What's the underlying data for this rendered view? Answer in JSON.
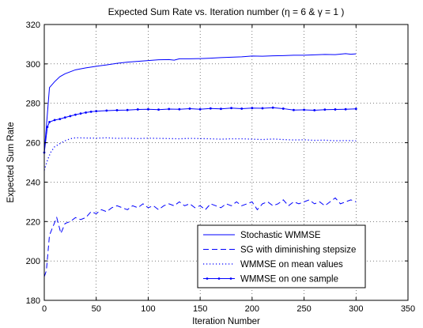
{
  "chart_data": {
    "type": "line",
    "title": "Expected Sum Rate vs. Iteration number (η = 6 & γ = 1 )",
    "xlabel": "Iteration Number",
    "ylabel": "Expected Sum Rate",
    "xlim": [
      0,
      350
    ],
    "ylim": [
      180,
      320
    ],
    "xticks": [
      0,
      50,
      100,
      150,
      200,
      250,
      300,
      350
    ],
    "yticks": [
      180,
      200,
      220,
      240,
      260,
      280,
      300,
      320
    ],
    "grid": "dotted",
    "legend_position": "bottom-right",
    "line_color": "#0000ff",
    "series": [
      {
        "name": "Stochastic WMMSE",
        "style": "solid",
        "points": [
          [
            0,
            255
          ],
          [
            5,
            288
          ],
          [
            10,
            291
          ],
          [
            15,
            293.5
          ],
          [
            20,
            295
          ],
          [
            25,
            296
          ],
          [
            30,
            297
          ],
          [
            40,
            298
          ],
          [
            50,
            298.8
          ],
          [
            60,
            299.5
          ],
          [
            70,
            300.3
          ],
          [
            80,
            300.9
          ],
          [
            90,
            301.3
          ],
          [
            100,
            301.7
          ],
          [
            110,
            302.1
          ],
          [
            120,
            302.2
          ],
          [
            125,
            301.9
          ],
          [
            130,
            302.6
          ],
          [
            140,
            302.6
          ],
          [
            150,
            302.7
          ],
          [
            160,
            302.9
          ],
          [
            170,
            303.2
          ],
          [
            180,
            303.4
          ],
          [
            190,
            303.6
          ],
          [
            200,
            304.0
          ],
          [
            210,
            303.9
          ],
          [
            220,
            304.1
          ],
          [
            230,
            304.2
          ],
          [
            240,
            304.4
          ],
          [
            250,
            304.4
          ],
          [
            260,
            304.6
          ],
          [
            270,
            304.8
          ],
          [
            280,
            304.7
          ],
          [
            290,
            305.2
          ],
          [
            295,
            304.9
          ],
          [
            300,
            305.1
          ]
        ]
      },
      {
        "name": "SG with diminishing stepsize",
        "style": "dashed",
        "points": [
          [
            0,
            192
          ],
          [
            2,
            195
          ],
          [
            5,
            213
          ],
          [
            8,
            217
          ],
          [
            12,
            222
          ],
          [
            16,
            214
          ],
          [
            20,
            219
          ],
          [
            25,
            220
          ],
          [
            30,
            222
          ],
          [
            35,
            221
          ],
          [
            40,
            222
          ],
          [
            45,
            225
          ],
          [
            50,
            224
          ],
          [
            55,
            226
          ],
          [
            60,
            225
          ],
          [
            65,
            227
          ],
          [
            70,
            228
          ],
          [
            75,
            227
          ],
          [
            80,
            226
          ],
          [
            85,
            228
          ],
          [
            90,
            227
          ],
          [
            95,
            229
          ],
          [
            100,
            227
          ],
          [
            105,
            228
          ],
          [
            110,
            226
          ],
          [
            115,
            228
          ],
          [
            120,
            229
          ],
          [
            125,
            228
          ],
          [
            130,
            230
          ],
          [
            135,
            228
          ],
          [
            140,
            229
          ],
          [
            145,
            227
          ],
          [
            150,
            228
          ],
          [
            155,
            226
          ],
          [
            160,
            229
          ],
          [
            165,
            228
          ],
          [
            170,
            227
          ],
          [
            175,
            229
          ],
          [
            180,
            228
          ],
          [
            185,
            230
          ],
          [
            190,
            228
          ],
          [
            195,
            229
          ],
          [
            200,
            230
          ],
          [
            205,
            226
          ],
          [
            210,
            229
          ],
          [
            215,
            230
          ],
          [
            220,
            228
          ],
          [
            225,
            229
          ],
          [
            230,
            231
          ],
          [
            235,
            228
          ],
          [
            240,
            230
          ],
          [
            245,
            229
          ],
          [
            250,
            230
          ],
          [
            255,
            231
          ],
          [
            260,
            229
          ],
          [
            265,
            230
          ],
          [
            270,
            228
          ],
          [
            275,
            230
          ],
          [
            280,
            232
          ],
          [
            285,
            229
          ],
          [
            290,
            230
          ],
          [
            295,
            231
          ],
          [
            300,
            230
          ]
        ]
      },
      {
        "name": "WMMSE on mean values",
        "style": "dotted",
        "points": [
          [
            0,
            246
          ],
          [
            3,
            251
          ],
          [
            6,
            255
          ],
          [
            10,
            258
          ],
          [
            15,
            259.5
          ],
          [
            20,
            261
          ],
          [
            25,
            262
          ],
          [
            30,
            262.5
          ],
          [
            40,
            262.4
          ],
          [
            50,
            262.3
          ],
          [
            60,
            262.5
          ],
          [
            70,
            262.2
          ],
          [
            80,
            262.3
          ],
          [
            90,
            262.1
          ],
          [
            100,
            262.3
          ],
          [
            110,
            262.2
          ],
          [
            120,
            262.1
          ],
          [
            130,
            262.0
          ],
          [
            140,
            262.2
          ],
          [
            150,
            262.1
          ],
          [
            160,
            262.0
          ],
          [
            170,
            261.8
          ],
          [
            180,
            262.0
          ],
          [
            190,
            262.0
          ],
          [
            200,
            261.8
          ],
          [
            210,
            261.6
          ],
          [
            220,
            261.9
          ],
          [
            230,
            261.6
          ],
          [
            240,
            261.4
          ],
          [
            250,
            261.5
          ],
          [
            260,
            261.2
          ],
          [
            270,
            261.3
          ],
          [
            280,
            261.0
          ],
          [
            290,
            261.1
          ],
          [
            300,
            261.0
          ]
        ]
      },
      {
        "name": "WMMSE on one sample",
        "style": "solid-dots",
        "points": [
          [
            0,
            255
          ],
          [
            3,
            268
          ],
          [
            5,
            270.5
          ],
          [
            10,
            271.5
          ],
          [
            15,
            272
          ],
          [
            20,
            272.8
          ],
          [
            25,
            273.5
          ],
          [
            30,
            274.2
          ],
          [
            35,
            274.8
          ],
          [
            40,
            275.3
          ],
          [
            45,
            275.7
          ],
          [
            50,
            276
          ],
          [
            60,
            276.3
          ],
          [
            70,
            276.5
          ],
          [
            80,
            276.6
          ],
          [
            90,
            276.9
          ],
          [
            100,
            277.0
          ],
          [
            110,
            276.8
          ],
          [
            120,
            277.1
          ],
          [
            130,
            277.0
          ],
          [
            140,
            277.3
          ],
          [
            150,
            277.0
          ],
          [
            160,
            277.4
          ],
          [
            170,
            277.2
          ],
          [
            180,
            277.6
          ],
          [
            190,
            277.3
          ],
          [
            200,
            277.6
          ],
          [
            210,
            277.5
          ],
          [
            220,
            277.8
          ],
          [
            230,
            277.3
          ],
          [
            240,
            276.6
          ],
          [
            250,
            276.7
          ],
          [
            260,
            276.5
          ],
          [
            270,
            276.8
          ],
          [
            280,
            276.9
          ],
          [
            290,
            277.0
          ],
          [
            300,
            277.2
          ]
        ]
      }
    ]
  }
}
